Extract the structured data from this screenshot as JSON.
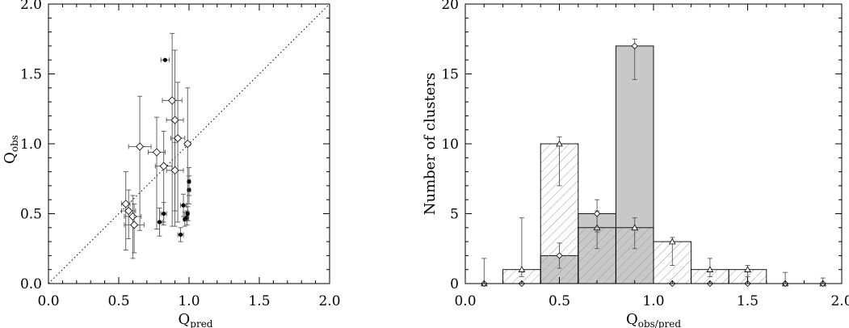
{
  "chart_data": [
    {
      "type": "scatter",
      "title": "",
      "xlabel": "Q",
      "xlabel_sub": "pred",
      "ylabel": "Q",
      "ylabel_sub": "obs",
      "xlim": [
        0.0,
        2.0
      ],
      "ylim": [
        0.0,
        2.0
      ],
      "xticks": [
        "0.0",
        "0.5",
        "1.0",
        "1.5",
        "2.0"
      ],
      "yticks": [
        "0.0",
        "0.5",
        "1.0",
        "1.5",
        "2.0"
      ],
      "reference_line": {
        "from": [
          0,
          0
        ],
        "to": [
          2,
          2
        ],
        "style": "dotted"
      },
      "grid": false,
      "series": [
        {
          "marker": "open-diamond",
          "points": [
            {
              "x": 0.55,
              "y": 0.57,
              "xerr": 0.03,
              "yerr_lo": 0.33,
              "yerr_hi": 0.23
            },
            {
              "x": 0.57,
              "y": 0.52,
              "xerr": 0.05,
              "yerr_lo": 0.2,
              "yerr_hi": 0.15
            },
            {
              "x": 0.6,
              "y": 0.48,
              "xerr": 0.06,
              "yerr_lo": 0.3,
              "yerr_hi": 0.15
            },
            {
              "x": 0.61,
              "y": 0.42,
              "xerr": 0.07,
              "yerr_lo": 0.2,
              "yerr_hi": 0.15
            },
            {
              "x": 0.65,
              "y": 0.98,
              "xerr": 0.08,
              "yerr_lo": 0.6,
              "yerr_hi": 0.36
            },
            {
              "x": 0.77,
              "y": 0.94,
              "xerr": 0.06,
              "yerr_lo": 0.55,
              "yerr_hi": 0.25
            },
            {
              "x": 0.82,
              "y": 0.84,
              "xerr": 0.06,
              "yerr_lo": 0.4,
              "yerr_hi": 0.25
            },
            {
              "x": 0.88,
              "y": 1.31,
              "xerr": 0.07,
              "yerr_lo": 0.9,
              "yerr_hi": 0.48
            },
            {
              "x": 0.9,
              "y": 1.17,
              "xerr": 0.06,
              "yerr_lo": 0.65,
              "yerr_hi": 0.5
            },
            {
              "x": 0.9,
              "y": 0.81,
              "xerr": 0.06,
              "yerr_lo": 0.4,
              "yerr_hi": 0.2
            },
            {
              "x": 0.92,
              "y": 1.04,
              "xerr": 0.05,
              "yerr_lo": 0.6,
              "yerr_hi": 0.4
            },
            {
              "x": 0.99,
              "y": 1.0,
              "xerr": 0.02,
              "yerr_lo": 0.55,
              "yerr_hi": 0.4
            }
          ]
        },
        {
          "marker": "filled-circle",
          "points": [
            {
              "x": 0.83,
              "y": 1.6,
              "xerr": 0.03,
              "yerr_lo": 0,
              "yerr_hi": 0
            },
            {
              "x": 0.79,
              "y": 0.44,
              "xerr": 0.02,
              "yerr_lo": 0.1,
              "yerr_hi": 0.1
            },
            {
              "x": 0.82,
              "y": 0.5,
              "xerr": 0.02,
              "yerr_lo": 0.08,
              "yerr_hi": 0.08
            },
            {
              "x": 0.94,
              "y": 0.35,
              "xerr": 0.02,
              "yerr_lo": 0.05,
              "yerr_hi": 0.05
            },
            {
              "x": 0.96,
              "y": 0.56,
              "xerr": 0.02,
              "yerr_lo": 0.08,
              "yerr_hi": 0.08
            },
            {
              "x": 0.97,
              "y": 0.46,
              "xerr": 0.01,
              "yerr_lo": 0.05,
              "yerr_hi": 0.05
            },
            {
              "x": 0.985,
              "y": 0.47,
              "xerr": 0.01,
              "yerr_lo": 0.05,
              "yerr_hi": 0.05
            },
            {
              "x": 0.99,
              "y": 0.5,
              "xerr": 0.01,
              "yerr_lo": 0.05,
              "yerr_hi": 0.05
            },
            {
              "x": 1.0,
              "y": 0.67,
              "xerr": 0.01,
              "yerr_lo": 0.1,
              "yerr_hi": 0.1
            },
            {
              "x": 1.0,
              "y": 0.73,
              "xerr": 0.01,
              "yerr_lo": 0.1,
              "yerr_hi": 0.1
            }
          ]
        }
      ]
    },
    {
      "type": "bar",
      "title": "",
      "xlabel": "Q",
      "xlabel_sub": "obs/pred",
      "ylabel": "Number of clusters",
      "xlim": [
        0.0,
        2.0
      ],
      "ylim": [
        0,
        20
      ],
      "xticks": [
        "0.0",
        "0.5",
        "1.0",
        "1.5",
        "2.0"
      ],
      "yticks": [
        "0",
        "5",
        "10",
        "15",
        "20"
      ],
      "grid": false,
      "bin_edges": [
        0.0,
        0.2,
        0.4,
        0.6,
        0.8,
        1.0,
        1.2,
        1.4,
        1.6,
        1.8,
        2.0
      ],
      "series": [
        {
          "fill": "hatched",
          "values": [
            0,
            1,
            10,
            4,
            4,
            3,
            1,
            1,
            0,
            0
          ],
          "marker": "open-triangle",
          "points": [
            {
              "x": 0.1,
              "y": 0,
              "yerr_lo": 0,
              "yerr_hi": 1.8
            },
            {
              "x": 0.3,
              "y": 1,
              "yerr_lo": 0.5,
              "yerr_hi": 3.7
            },
            {
              "x": 0.5,
              "y": 10,
              "yerr_lo": 3.0,
              "yerr_hi": 0.5
            },
            {
              "x": 0.7,
              "y": 4,
              "yerr_lo": 1.5,
              "yerr_hi": 1.2
            },
            {
              "x": 0.9,
              "y": 4,
              "yerr_lo": 1.5,
              "yerr_hi": 0.7
            },
            {
              "x": 1.1,
              "y": 3,
              "yerr_lo": 1.7,
              "yerr_hi": 0.3
            },
            {
              "x": 1.3,
              "y": 1,
              "yerr_lo": 0.5,
              "yerr_hi": 0.8
            },
            {
              "x": 1.5,
              "y": 1,
              "yerr_lo": 0.5,
              "yerr_hi": 0.3
            },
            {
              "x": 1.7,
              "y": 0,
              "yerr_lo": 0,
              "yerr_hi": 0.8
            },
            {
              "x": 1.9,
              "y": 0,
              "yerr_lo": 0,
              "yerr_hi": 0.4
            }
          ]
        },
        {
          "fill": "gray",
          "color": "#c8c8c8",
          "values": [
            0,
            0,
            2,
            5,
            17,
            0,
            0,
            0,
            0,
            0
          ],
          "marker": "open-diamond",
          "points": [
            {
              "x": 0.1,
              "y": 0,
              "yerr_lo": 0,
              "yerr_hi": 0
            },
            {
              "x": 0.3,
              "y": 0,
              "yerr_lo": 0,
              "yerr_hi": 0
            },
            {
              "x": 0.5,
              "y": 2,
              "yerr_lo": 0.9,
              "yerr_hi": 0.9
            },
            {
              "x": 0.7,
              "y": 5,
              "yerr_lo": 1.3,
              "yerr_hi": 1.0
            },
            {
              "x": 0.9,
              "y": 17,
              "yerr_lo": 2.4,
              "yerr_hi": 0.5
            },
            {
              "x": 1.1,
              "y": 0,
              "yerr_lo": 0,
              "yerr_hi": 0
            },
            {
              "x": 1.3,
              "y": 0,
              "yerr_lo": 0,
              "yerr_hi": 0
            },
            {
              "x": 1.5,
              "y": 0,
              "yerr_lo": 0,
              "yerr_hi": 0
            },
            {
              "x": 1.7,
              "y": 0,
              "yerr_lo": 0,
              "yerr_hi": 0
            },
            {
              "x": 1.9,
              "y": 0,
              "yerr_lo": 0,
              "yerr_hi": 0
            }
          ]
        }
      ]
    }
  ]
}
